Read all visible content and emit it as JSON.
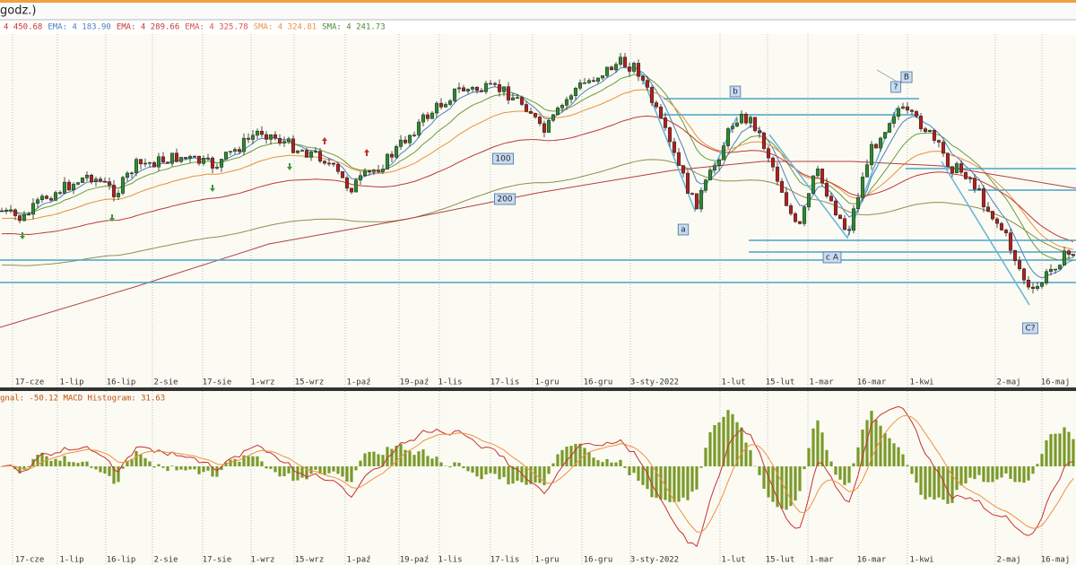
{
  "header": {
    "title": "godz.)"
  },
  "legend": [
    {
      "text": "4 450.68",
      "color": "#d03030"
    },
    {
      "text": "EMA: 4 183.90",
      "color": "#4a7fc0"
    },
    {
      "text": "EMA: 4 289.66",
      "color": "#c03838"
    },
    {
      "text": "EMA: 4 325.78",
      "color": "#d85050"
    },
    {
      "text": "SMA: 4 324.81",
      "color": "#e89040"
    },
    {
      "text": "SMA: 4 241.73",
      "color": "#4a8a30"
    }
  ],
  "annotations": [
    "b",
    "B",
    "?",
    "100",
    "200",
    "a",
    "c A",
    "C?"
  ],
  "x_labels": [
    "17-cze",
    "1-lip",
    "16-lip",
    "2-sie",
    "17-sie",
    "1-wrz",
    "15-wrz",
    "1-paź",
    "19-paź",
    "1-lis",
    "17-lis",
    "1-gru",
    "16-gru",
    "3-sty-2022",
    "1-lut",
    "15-lut",
    "1-mar",
    "16-mar",
    "1-kwi",
    "2-maj",
    "16-maj"
  ],
  "macd_legend": "gnal: -50.12 MACD Histogram: 31.63"
}
